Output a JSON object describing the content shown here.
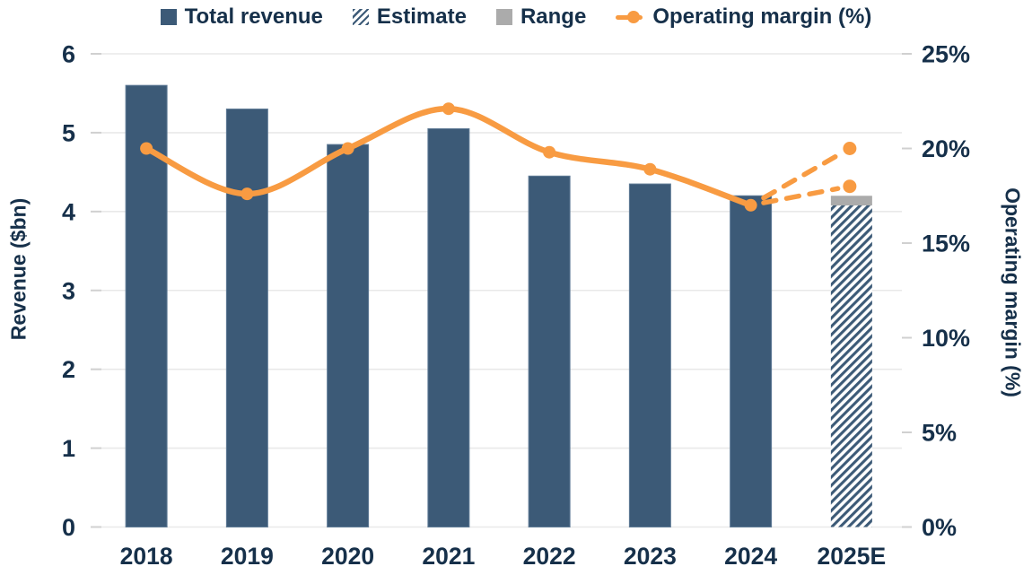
{
  "colors": {
    "navy": "#3C5A77",
    "navy_stroke": "#5F7B96",
    "orange": "#F89B42",
    "gray": "#ABABAB",
    "text": "#16304A",
    "grid": "#E9E9E9",
    "tick": "#D0D0D0",
    "hatch_bg": "#FFFFFF"
  },
  "legend": {
    "items": [
      {
        "label": "Total revenue",
        "icon": "navy-square"
      },
      {
        "label": "Estimate",
        "icon": "hatched-square"
      },
      {
        "label": "Range",
        "icon": "gray-square"
      },
      {
        "label": "Operating margin (%)",
        "icon": "orange-line-dot"
      }
    ]
  },
  "chart_data": {
    "type": "bar+line",
    "title": "",
    "categories": [
      "2018",
      "2019",
      "2020",
      "2021",
      "2022",
      "2023",
      "2024",
      "2025E"
    ],
    "series": [
      {
        "name": "Total revenue",
        "type": "bar",
        "axis": "left",
        "values": [
          5.6,
          5.3,
          4.85,
          5.05,
          4.45,
          4.35,
          4.2,
          null
        ]
      },
      {
        "name": "Estimate",
        "type": "bar-hatched",
        "axis": "left",
        "values": [
          null,
          null,
          null,
          null,
          null,
          null,
          null,
          4.1
        ]
      },
      {
        "name": "Range",
        "type": "range-cap",
        "axis": "left",
        "category": "2025E",
        "low": 4.1,
        "high": 4.2
      },
      {
        "name": "Operating margin (%)",
        "type": "line",
        "axis": "right",
        "values": [
          20,
          17.6,
          20,
          22.1,
          19.8,
          18.9,
          17,
          null
        ],
        "forecast": {
          "from_category": "2024",
          "points": [
            {
              "category": "2025E",
              "value": 20
            },
            {
              "category": "2025E",
              "value": 18
            }
          ]
        }
      }
    ],
    "ylabel_left": "Revenue ($bn)",
    "ylabel_right": "Operating margin (%)",
    "left_ticks": [
      "0",
      "1",
      "2",
      "3",
      "4",
      "5",
      "6"
    ],
    "right_ticks": [
      "0%",
      "5%",
      "10%",
      "15%",
      "20%",
      "25%"
    ],
    "ylim_left": [
      0,
      6
    ],
    "ylim_right": [
      0,
      25
    ],
    "grid": true,
    "legend_position": "top"
  }
}
